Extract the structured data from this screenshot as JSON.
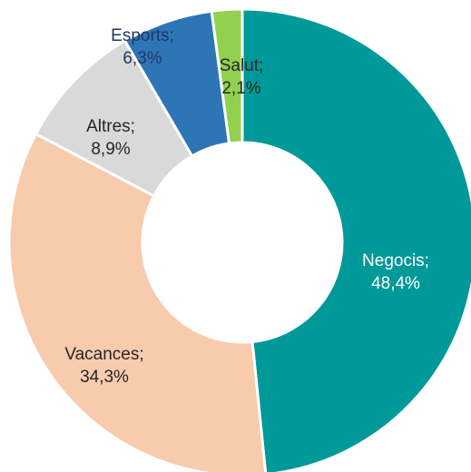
{
  "chart_data": {
    "type": "donut",
    "categories": [
      "Negocis;",
      "Vacances;",
      "Altres;",
      "Esports;",
      "Salut;"
    ],
    "values": [
      48.4,
      34.3,
      8.9,
      6.3,
      2.1
    ],
    "value_labels": [
      "48,4%",
      "34,3%",
      "8,9%",
      "6,3%",
      "2,1%"
    ],
    "colors": [
      "#009999",
      "#f8cbad",
      "#d9d9d9",
      "#2e75b6",
      "#92d050"
    ]
  }
}
